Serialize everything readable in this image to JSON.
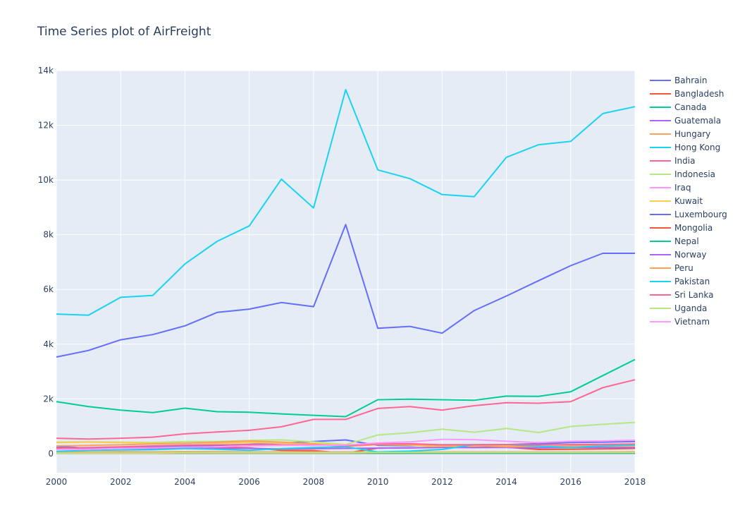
{
  "chart_data": {
    "type": "line",
    "title": "Time Series plot of AirFreight",
    "xlabel": "",
    "ylabel": "",
    "xlim": [
      2000,
      2018
    ],
    "ylim": [
      -700,
      14000
    ],
    "x_ticks": [
      2000,
      2002,
      2004,
      2006,
      2008,
      2010,
      2012,
      2014,
      2016,
      2018
    ],
    "y_ticks": [
      0,
      2000,
      4000,
      6000,
      8000,
      10000,
      12000,
      14000
    ],
    "y_tick_labels": [
      "0",
      "2k",
      "4k",
      "6k",
      "8k",
      "10k",
      "12k",
      "14k"
    ],
    "grid": true,
    "legend_position": "right",
    "x": [
      2000,
      2001,
      2002,
      2003,
      2004,
      2005,
      2006,
      2007,
      2008,
      2009,
      2010,
      2011,
      2012,
      2013,
      2014,
      2015,
      2016,
      2017,
      2018
    ],
    "series": [
      {
        "name": "Bahrain",
        "color": "#636efa",
        "values": [
          260,
          200,
          220,
          240,
          270,
          300,
          340,
          380,
          440,
          500,
          300,
          290,
          320,
          320,
          330,
          360,
          400,
          420,
          440
        ]
      },
      {
        "name": "Bangladesh",
        "color": "#EF553B",
        "values": [
          200,
          190,
          190,
          200,
          210,
          220,
          210,
          120,
          110,
          20,
          200,
          210,
          230,
          220,
          230,
          150,
          160,
          170,
          190
        ]
      },
      {
        "name": "Canada",
        "color": "#00cc96",
        "values": [
          1900,
          1720,
          1590,
          1500,
          1660,
          1530,
          1510,
          1450,
          1400,
          1350,
          1970,
          1990,
          1970,
          1950,
          2100,
          2090,
          2260,
          2850,
          3440
        ]
      },
      {
        "name": "Guatemala",
        "color": "#ab63fa",
        "values": [
          30,
          30,
          30,
          30,
          30,
          30,
          30,
          30,
          30,
          30,
          30,
          30,
          30,
          30,
          30,
          30,
          30,
          30,
          30
        ]
      },
      {
        "name": "Hungary",
        "color": "#FFA15A",
        "values": [
          60,
          60,
          70,
          60,
          70,
          70,
          60,
          60,
          60,
          60,
          60,
          60,
          60,
          60,
          60,
          60,
          60,
          60,
          70
        ]
      },
      {
        "name": "Hong Kong",
        "color": "#19d3f3",
        "values": [
          5100,
          5060,
          5710,
          5780,
          6930,
          7760,
          8320,
          10030,
          8980,
          13300,
          10370,
          10050,
          9470,
          9390,
          10830,
          11290,
          11410,
          12430,
          12680
        ]
      },
      {
        "name": "India",
        "color": "#FF6692",
        "values": [
          560,
          530,
          560,
          600,
          720,
          790,
          850,
          980,
          1250,
          1250,
          1650,
          1720,
          1590,
          1750,
          1860,
          1840,
          1900,
          2410,
          2700
        ]
      },
      {
        "name": "Indonesia",
        "color": "#B6E880",
        "values": [
          420,
          430,
          420,
          400,
          440,
          440,
          480,
          500,
          430,
          330,
          680,
          760,
          890,
          780,
          920,
          770,
          990,
          1070,
          1140
        ]
      },
      {
        "name": "Iraq",
        "color": "#FF97FF",
        "values": [
          20,
          20,
          20,
          20,
          20,
          30,
          30,
          30,
          30,
          30,
          30,
          40,
          40,
          40,
          40,
          40,
          40,
          40,
          40
        ]
      },
      {
        "name": "Kuwait",
        "color": "#FECB52",
        "values": [
          400,
          420,
          400,
          380,
          380,
          380,
          400,
          380,
          350,
          320,
          330,
          310,
          250,
          280,
          280,
          260,
          230,
          250,
          260
        ]
      },
      {
        "name": "Luxembourg",
        "color": "#636efa",
        "values": [
          3530,
          3770,
          4160,
          4350,
          4670,
          5160,
          5280,
          5520,
          5370,
          8370,
          4580,
          4650,
          4400,
          5230,
          5760,
          6320,
          6870,
          7320,
          7320
        ]
      },
      {
        "name": "Mongolia",
        "color": "#EF553B",
        "values": [
          10,
          10,
          10,
          10,
          10,
          10,
          10,
          10,
          10,
          10,
          10,
          10,
          10,
          10,
          10,
          10,
          10,
          10,
          10
        ]
      },
      {
        "name": "Nepal",
        "color": "#00cc96",
        "values": [
          20,
          20,
          20,
          20,
          20,
          20,
          20,
          20,
          20,
          20,
          20,
          20,
          20,
          20,
          20,
          20,
          20,
          20,
          20
        ]
      },
      {
        "name": "Norway",
        "color": "#ab63fa",
        "values": [
          200,
          190,
          190,
          190,
          200,
          190,
          190,
          170,
          180,
          190,
          200,
          210,
          220,
          220,
          220,
          210,
          220,
          220,
          220
        ]
      },
      {
        "name": "Peru",
        "color": "#FFA15A",
        "values": [
          280,
          300,
          320,
          350,
          380,
          420,
          460,
          420,
          360,
          260,
          330,
          330,
          300,
          300,
          250,
          260,
          280,
          300,
          300
        ]
      },
      {
        "name": "Pakistan",
        "color": "#19d3f3",
        "values": [
          80,
          120,
          130,
          140,
          180,
          160,
          120,
          180,
          220,
          250,
          60,
          90,
          150,
          330,
          330,
          270,
          220,
          280,
          310
        ]
      },
      {
        "name": "Sri Lanka",
        "color": "#FF6692",
        "values": [
          200,
          220,
          250,
          280,
          310,
          320,
          330,
          320,
          310,
          290,
          350,
          360,
          320,
          320,
          330,
          320,
          330,
          340,
          350
        ]
      },
      {
        "name": "Uganda",
        "color": "#B6E880",
        "values": [
          20,
          20,
          20,
          20,
          30,
          30,
          30,
          30,
          30,
          30,
          40,
          40,
          40,
          40,
          40,
          40,
          40,
          40,
          40
        ]
      },
      {
        "name": "Vietnam",
        "color": "#FF97FF",
        "values": [
          150,
          160,
          190,
          210,
          240,
          250,
          280,
          300,
          300,
          310,
          390,
          430,
          520,
          510,
          450,
          400,
          450,
          460,
          490
        ]
      }
    ]
  }
}
